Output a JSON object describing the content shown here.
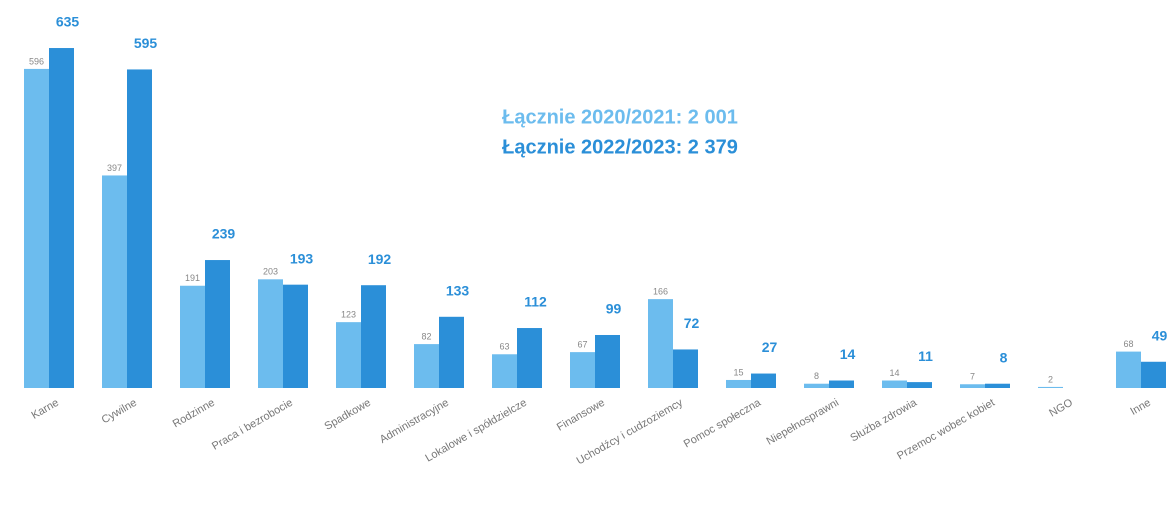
{
  "chart_data": {
    "type": "bar",
    "categories": [
      "Karne",
      "Cywilne",
      "Rodzinne",
      "Praca i bezrobocie",
      "Spadkowe",
      "Administracyjne",
      "Lokalowe i spółdzielcze",
      "Finansowe",
      "Uchodźcy i cudzoziemcy",
      "Pomoc społeczna",
      "Niepełnosprawni",
      "Służba zdrowia",
      "Przemoc wobec kobiet",
      "NGO",
      "Inne"
    ],
    "series": [
      {
        "color": "#6cbcee",
        "values": [
          596,
          397,
          191,
          203,
          123,
          82,
          63,
          67,
          166,
          15,
          8,
          14,
          7,
          2,
          68
        ]
      },
      {
        "color": "#2b8fd8",
        "values": [
          635,
          595,
          239,
          193,
          192,
          133,
          112,
          99,
          72,
          27,
          14,
          11,
          8,
          0,
          49
        ],
        "value_labels": [
          "635",
          "595",
          "239",
          "193",
          "192",
          "133",
          "112",
          "99",
          "72",
          "27",
          "14",
          "11",
          "8",
          null,
          "49"
        ]
      }
    ],
    "annotations": [
      {
        "text": "Łącznie 2020/2021: 2 001",
        "color": "#6cbcee"
      },
      {
        "text": "Łącznie 2022/2023: 2 379",
        "color": "#2b8fd8"
      }
    ],
    "ylim": [
      0,
      650
    ]
  }
}
